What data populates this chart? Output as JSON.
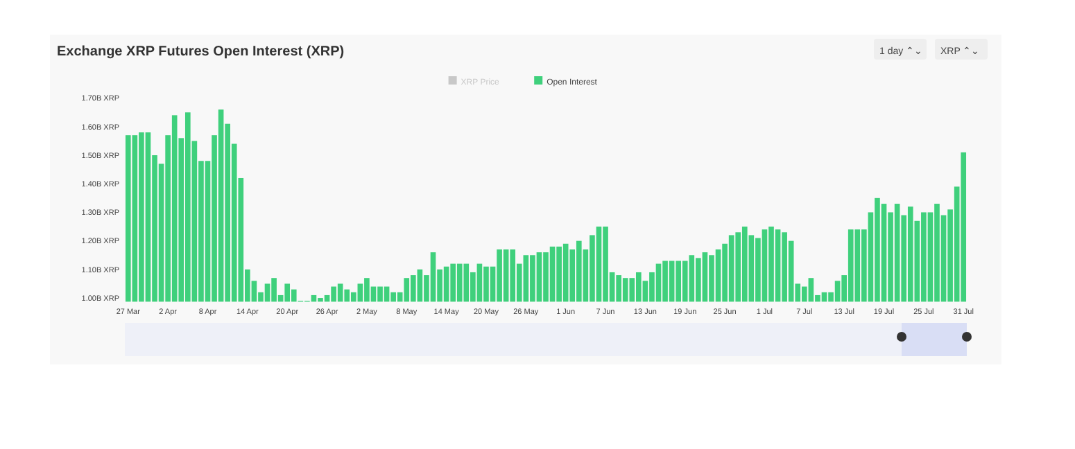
{
  "chart_data": {
    "type": "bar",
    "title": "Exchange XRP Futures Open Interest (XRP)",
    "annotations": [
      "1 day ⌃⌄",
      "XRP ⌃⌄"
    ],
    "categories": [
      "27 Mar",
      null,
      null,
      null,
      null,
      null,
      "2 Apr",
      null,
      null,
      null,
      null,
      null,
      "8 Apr",
      null,
      null,
      null,
      null,
      null,
      "14 Apr",
      null,
      null,
      null,
      null,
      null,
      "20 Apr",
      null,
      null,
      null,
      null,
      null,
      "26 Apr",
      null,
      null,
      null,
      null,
      null,
      "2 May",
      null,
      null,
      null,
      null,
      null,
      "8 May",
      null,
      null,
      null,
      null,
      null,
      "14 May",
      null,
      null,
      null,
      null,
      null,
      "20 May",
      null,
      null,
      null,
      null,
      null,
      "26 May",
      null,
      null,
      null,
      null,
      null,
      "1 Jun",
      null,
      null,
      null,
      null,
      null,
      "7 Jun",
      null,
      null,
      null,
      null,
      null,
      "13 Jun",
      null,
      null,
      null,
      null,
      null,
      "19 Jun",
      null,
      null,
      null,
      null,
      null,
      "25 Jun",
      null,
      null,
      null,
      null,
      null,
      "1 Jul",
      null,
      null,
      null,
      null,
      null,
      "7 Jul",
      null,
      null,
      null,
      null,
      null,
      "13 Jul",
      null,
      null,
      null,
      null,
      null,
      "19 Jul",
      null,
      null,
      null,
      null,
      null,
      "25 Jul",
      null,
      null,
      null,
      null,
      null,
      "31 Jul"
    ],
    "series": [
      {
        "name": "XRP Price",
        "color": "#c8c8c8",
        "values": [
          null,
          null,
          null,
          null,
          null,
          null,
          null,
          null,
          null,
          null,
          null,
          null,
          null,
          null,
          null,
          null,
          null,
          null,
          null,
          null,
          null,
          null,
          null,
          null,
          null,
          null,
          null,
          null,
          null,
          null,
          null,
          null,
          null,
          null,
          null,
          null,
          null,
          null,
          null,
          null,
          null,
          null,
          null,
          null,
          null,
          null,
          null,
          null,
          null,
          null,
          null,
          null,
          null,
          null,
          null,
          null,
          null,
          null,
          null,
          null,
          null,
          null,
          null,
          null,
          null,
          null,
          null,
          null,
          null,
          null,
          null,
          null,
          null,
          null,
          null,
          null,
          null,
          null,
          null,
          null,
          null,
          null,
          null,
          null,
          null,
          null,
          null,
          null,
          null,
          null,
          null,
          null,
          null,
          null,
          null,
          null,
          null,
          null,
          null,
          null,
          null,
          null,
          null,
          null,
          null,
          null,
          null,
          null,
          null,
          null,
          null,
          null,
          null,
          null,
          null,
          null,
          null,
          null,
          null,
          null,
          null,
          null,
          null,
          null,
          null,
          null,
          null
        ]
      },
      {
        "name": "Open Interest",
        "color": "#3fd07c",
        "values": [
          1.57,
          1.57,
          1.58,
          1.58,
          1.5,
          1.47,
          1.57,
          1.64,
          1.56,
          1.65,
          1.55,
          1.48,
          1.48,
          1.57,
          1.66,
          1.61,
          1.54,
          1.42,
          1.1,
          1.06,
          1.02,
          1.05,
          1.07,
          1.01,
          1.05,
          1.03,
          0.99,
          0.99,
          1.01,
          1.0,
          1.01,
          1.04,
          1.05,
          1.03,
          1.02,
          1.05,
          1.07,
          1.04,
          1.04,
          1.04,
          1.02,
          1.02,
          1.07,
          1.08,
          1.1,
          1.08,
          1.16,
          1.1,
          1.11,
          1.12,
          1.12,
          1.12,
          1.09,
          1.12,
          1.11,
          1.11,
          1.17,
          1.17,
          1.17,
          1.12,
          1.15,
          1.15,
          1.16,
          1.16,
          1.18,
          1.18,
          1.19,
          1.17,
          1.2,
          1.17,
          1.22,
          1.25,
          1.25,
          1.09,
          1.08,
          1.07,
          1.07,
          1.09,
          1.06,
          1.09,
          1.12,
          1.13,
          1.13,
          1.13,
          1.13,
          1.15,
          1.14,
          1.16,
          1.15,
          1.17,
          1.19,
          1.22,
          1.23,
          1.25,
          1.22,
          1.21,
          1.24,
          1.25,
          1.24,
          1.23,
          1.2,
          1.05,
          1.04,
          1.07,
          1.01,
          1.02,
          1.02,
          1.06,
          1.08,
          1.24,
          1.24,
          1.24,
          1.3,
          1.35,
          1.33,
          1.3,
          1.33,
          1.29,
          1.32,
          1.27,
          1.3,
          1.3,
          1.33,
          1.29,
          1.31,
          1.39,
          1.51
        ]
      }
    ],
    "ylim": [
      0.987,
      1.7
    ],
    "yticks": [
      {
        "value": 1.0,
        "label": "1.00B XRP"
      },
      {
        "value": 1.1,
        "label": "1.10B XRP"
      },
      {
        "value": 1.2,
        "label": "1.20B XRP"
      },
      {
        "value": 1.3,
        "label": "1.30B XRP"
      },
      {
        "value": 1.4,
        "label": "1.40B XRP"
      },
      {
        "value": 1.5,
        "label": "1.50B XRP"
      },
      {
        "value": 1.6,
        "label": "1.60B XRP"
      },
      {
        "value": 1.7,
        "label": "1.70B XRP"
      }
    ],
    "grid": false,
    "legend": "top"
  }
}
